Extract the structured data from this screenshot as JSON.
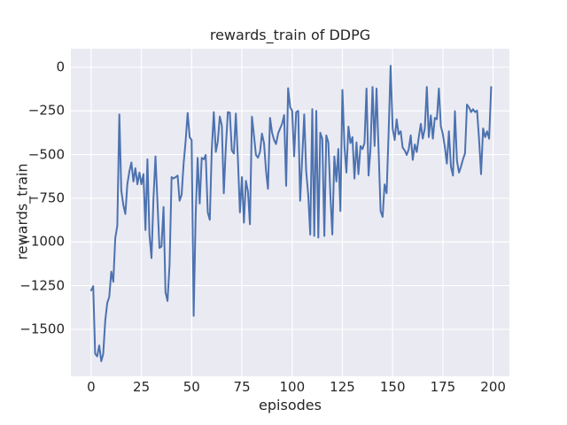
{
  "chart_data": {
    "type": "line",
    "title": "rewards_train of DDPG",
    "xlabel": "episodes",
    "ylabel": "rewards_train",
    "grid": true,
    "legend": false,
    "plot_background": "#eaeaf2",
    "grid_color": "#ffffff",
    "text_color": "#262626",
    "line_width": 2,
    "xlim": [
      -10.1,
      208.1
    ],
    "ylim": [
      -1769,
      106
    ],
    "xticks": [
      0,
      25,
      50,
      75,
      100,
      125,
      150,
      175,
      200
    ],
    "xtick_labels": [
      "0",
      "25",
      "50",
      "75",
      "100",
      "125",
      "150",
      "175",
      "200"
    ],
    "yticks": [
      0,
      -250,
      -500,
      -750,
      -1000,
      -1250,
      -1500
    ],
    "ytick_labels": [
      "0",
      "−250",
      "−500",
      "−750",
      "−1000",
      "−1250",
      "−1500"
    ],
    "series": [
      {
        "name": "rewards_train",
        "color": "#4c72b0",
        "x_start": 0,
        "x_step": 1,
        "values": [
          -1277,
          -1253,
          -1640,
          -1655,
          -1592,
          -1683,
          -1641,
          -1450,
          -1348,
          -1315,
          -1170,
          -1228,
          -978,
          -908,
          -270,
          -705,
          -789,
          -840,
          -671,
          -598,
          -545,
          -654,
          -578,
          -670,
          -603,
          -670,
          -612,
          -932,
          -527,
          -958,
          -1093,
          -755,
          -510,
          -781,
          -1034,
          -1026,
          -800,
          -1287,
          -1338,
          -1130,
          -629,
          -637,
          -629,
          -620,
          -764,
          -730,
          -548,
          -425,
          -262,
          -400,
          -417,
          -1423,
          -840,
          -519,
          -780,
          -519,
          -527,
          -502,
          -831,
          -873,
          -477,
          -257,
          -485,
          -426,
          -282,
          -334,
          -721,
          -460,
          -257,
          -260,
          -477,
          -494,
          -265,
          -519,
          -831,
          -629,
          -890,
          -650,
          -713,
          -899,
          -283,
          -392,
          -502,
          -518,
          -485,
          -380,
          -434,
          -595,
          -696,
          -290,
          -375,
          -417,
          -440,
          -380,
          -350,
          -324,
          -274,
          -679,
          -120,
          -228,
          -250,
          -510,
          -257,
          -250,
          -764,
          -520,
          -270,
          -595,
          -730,
          -958,
          -240,
          -966,
          -250,
          -975,
          -375,
          -410,
          -966,
          -390,
          -430,
          -730,
          -957,
          -510,
          -654,
          -468,
          -823,
          -130,
          -451,
          -603,
          -340,
          -434,
          -400,
          -637,
          -430,
          -612,
          -451,
          -468,
          -434,
          -122,
          -620,
          -468,
          -113,
          -451,
          -122,
          -468,
          -823,
          -857,
          -671,
          -721,
          -367,
          8,
          -350,
          -417,
          -298,
          -384,
          -367,
          -460,
          -476,
          -502,
          -470,
          -390,
          -530,
          -442,
          -485,
          -400,
          -324,
          -409,
          -350,
          -113,
          -400,
          -276,
          -409,
          -290,
          -298,
          -122,
          -337,
          -384,
          -460,
          -552,
          -367,
          -569,
          -620,
          -252,
          -536,
          -603,
          -570,
          -527,
          -493,
          -214,
          -230,
          -257,
          -240,
          -257,
          -248,
          -409,
          -612,
          -350,
          -400,
          -367,
          -409,
          -113
        ]
      }
    ]
  }
}
